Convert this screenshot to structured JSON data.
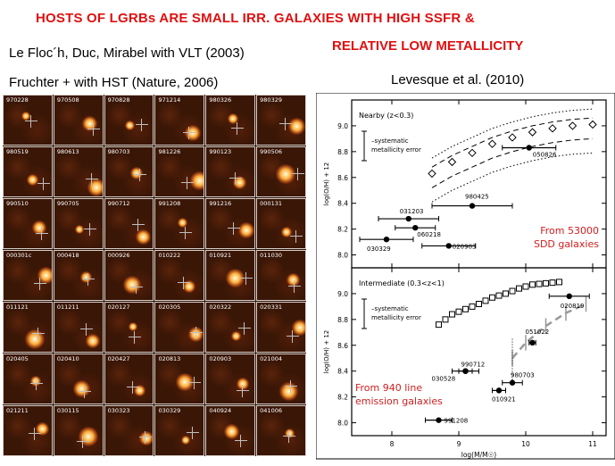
{
  "slide": {
    "title_line1": "HOSTS OF LGRBs ARE SMALL IRR. GALAXIES WITH HIGH SSFR &",
    "title_line2": "RELATIVE LOW METALLICITY",
    "caption_left1": "Le Floc´h, Duc, Mirabel with VLT (2003)",
    "caption_left2": "Fruchter + with HST (Nature, 2006)",
    "caption_right": "Levesque et al.  (2010)",
    "title_color": "#e01010"
  },
  "thumbnails": [
    "970228",
    "970508",
    "970828",
    "971214",
    "980326",
    "980329",
    "980519",
    "980613",
    "980703",
    "981226",
    "990123",
    "990506",
    "990510",
    "990705",
    "990712",
    "991208",
    "991216",
    "000131",
    "000301c",
    "000418",
    "000926",
    "010222",
    "010921",
    "011030",
    "011121",
    "011211",
    "020127",
    "020305",
    "020322",
    "020331",
    "020405",
    "020410",
    "020427",
    "020813",
    "020903",
    "021004",
    "021211",
    "030115",
    "030323",
    "030329",
    "040924",
    "041006"
  ],
  "chart_data": [
    {
      "type": "scatter",
      "panel_label": "Nearby (z<0.3)",
      "ylabel": "log(O/H) + 12",
      "error_label_line1": "systematic",
      "error_label_line2": "metallicity error",
      "annotation_line1": "From 53000",
      "annotation_line2": "SDD galaxies",
      "annotation_color": "#d02020",
      "xlim": [
        7.4,
        11.2
      ],
      "ylim": [
        7.9,
        9.2
      ],
      "yticks": [
        "8.0",
        "8.2",
        "8.4",
        "8.6",
        "8.8",
        "9.0"
      ],
      "points": [
        {
          "name": "050826",
          "x": 10.05,
          "y": 8.83,
          "xerr": 0.4
        },
        {
          "name": "980425",
          "x": 9.2,
          "y": 8.38,
          "xerr": 0.6
        },
        {
          "name": "031203",
          "x": 8.25,
          "y": 8.28,
          "xerr": 0.45
        },
        {
          "name": "060218",
          "x": 8.35,
          "y": 8.21,
          "xerr": 0.3
        },
        {
          "name": "030329",
          "x": 7.92,
          "y": 8.12,
          "xerr": 0.4
        },
        {
          "name": "020903",
          "x": 8.85,
          "y": 8.07,
          "xerr": 0.4
        }
      ],
      "relation": {
        "x": [
          8.6,
          8.9,
          9.2,
          9.5,
          9.8,
          10.1,
          10.4,
          10.7,
          11.0
        ],
        "y": [
          8.63,
          8.72,
          8.79,
          8.86,
          8.91,
          8.95,
          8.98,
          9.0,
          9.01
        ]
      }
    },
    {
      "type": "scatter",
      "panel_label": "Intermediate (0.3<z<1)",
      "ylabel": "log(O/H) + 12",
      "xlabel": "log(M/M☉)",
      "error_label_line1": "systematic",
      "error_label_line2": "metallicity error",
      "annotation_line1": "From 940 line",
      "annotation_line2": "emission galaxies",
      "annotation_color": "#d02020",
      "xlim": [
        7.4,
        11.2
      ],
      "ylim": [
        7.9,
        9.2
      ],
      "xticks": [
        "8",
        "9",
        "10",
        "11"
      ],
      "yticks": [
        "8.0",
        "8.2",
        "8.4",
        "8.6",
        "8.8",
        "9.0"
      ],
      "points": [
        {
          "name": "020819",
          "x": 10.65,
          "y": 8.98,
          "xerr": 0.3
        },
        {
          "name": "051022",
          "x": 10.1,
          "y": 8.62,
          "xerr": 0.05
        },
        {
          "name": "990712",
          "x": 9.1,
          "y": 8.4,
          "xerr": 0.1
        },
        {
          "name": "030528",
          "x": 9.1,
          "y": 8.4,
          "xerr": 0.2
        },
        {
          "name": "980703",
          "x": 9.8,
          "y": 8.31,
          "xerr": 0.15
        },
        {
          "name": "010921",
          "x": 9.6,
          "y": 8.25,
          "xerr": 0.1
        },
        {
          "name": "991208",
          "x": 8.7,
          "y": 8.02,
          "xerr": 0.2
        }
      ],
      "relation": {
        "x": [
          8.7,
          8.9,
          9.1,
          9.3,
          9.5,
          9.7,
          9.9,
          10.1,
          10.3,
          10.5
        ],
        "y": [
          8.76,
          8.84,
          8.88,
          8.92,
          8.97,
          9.0,
          9.04,
          9.07,
          9.08,
          9.09
        ]
      }
    }
  ]
}
